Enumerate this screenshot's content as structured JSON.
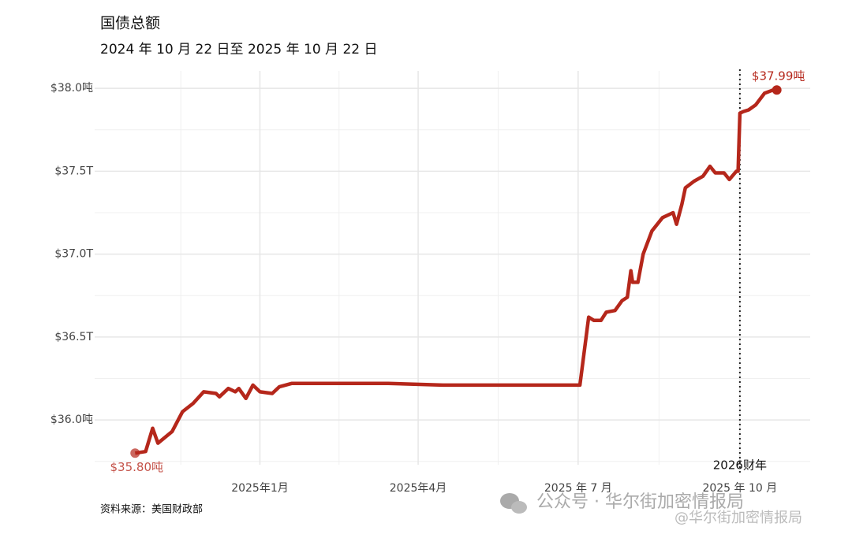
{
  "chart_data": {
    "type": "line",
    "title": "国债总额",
    "subtitle": "2024 年 10 月 22 日至 2025 年 10 月 22 日",
    "source": "资料来源：美国财政部",
    "watermark": [
      "公众号 · 华尔街加密情报局",
      "@华尔街加密情报局"
    ],
    "color": "#b5271b",
    "grid": true,
    "x": [
      "2024-10-22",
      "2024-10-28",
      "2024-11-01",
      "2024-11-04",
      "2024-11-12",
      "2024-11-18",
      "2024-11-24",
      "2024-11-30",
      "2024-12-07",
      "2024-12-09",
      "2024-12-14",
      "2024-12-18",
      "2024-12-20",
      "2024-12-24",
      "2024-12-28",
      "2025-01-01",
      "2025-01-08",
      "2025-01-12",
      "2025-01-19",
      "2025-02-15",
      "2025-03-15",
      "2025-04-15",
      "2025-05-15",
      "2025-06-15",
      "2025-07-02",
      "2025-07-07",
      "2025-07-10",
      "2025-07-14",
      "2025-07-17",
      "2025-07-22",
      "2025-07-26",
      "2025-07-29",
      "2025-07-31",
      "2025-08-01",
      "2025-08-04",
      "2025-08-07",
      "2025-08-12",
      "2025-08-18",
      "2025-08-24",
      "2025-08-26",
      "2025-08-29",
      "2025-08-31",
      "2025-09-05",
      "2025-09-10",
      "2025-09-14",
      "2025-09-17",
      "2025-09-22",
      "2025-09-25",
      "2025-09-29",
      "2025-09-30",
      "2025-10-01",
      "2025-10-03",
      "2025-10-06",
      "2025-10-10",
      "2025-10-15",
      "2025-10-20",
      "2025-10-22"
    ],
    "values": [
      35.8,
      35.81,
      35.95,
      35.86,
      35.93,
      36.05,
      36.1,
      36.17,
      36.16,
      36.14,
      36.19,
      36.17,
      36.19,
      36.13,
      36.21,
      36.17,
      36.16,
      36.2,
      36.22,
      36.22,
      36.22,
      36.21,
      36.21,
      36.21,
      36.21,
      36.62,
      36.6,
      36.6,
      36.65,
      36.66,
      36.72,
      36.74,
      36.9,
      36.83,
      36.83,
      37.0,
      37.14,
      37.22,
      37.25,
      37.18,
      37.3,
      37.4,
      37.44,
      37.47,
      37.53,
      37.49,
      37.49,
      37.45,
      37.5,
      37.5,
      37.85,
      37.86,
      37.87,
      37.9,
      37.97,
      37.99,
      37.99
    ],
    "value_labels": [
      "$35.80吨",
      null,
      null,
      null,
      null,
      null,
      null,
      null,
      null,
      null,
      null,
      null,
      null,
      null,
      null,
      null,
      null,
      null,
      null,
      null,
      null,
      null,
      null,
      null,
      null,
      null,
      null,
      null,
      null,
      null,
      null,
      null,
      null,
      null,
      null,
      null,
      null,
      null,
      null,
      null,
      null,
      null,
      null,
      null,
      null,
      null,
      null,
      null,
      null,
      null,
      null,
      null,
      null,
      null,
      null,
      null,
      "$37.99吨"
    ],
    "xlim": [
      "2024-09-29",
      "2025-11-10"
    ],
    "xticks": [
      {
        "value": "2025-01-01",
        "label": "2025年1月"
      },
      {
        "value": "2025-04-01",
        "label": "2025年4月"
      },
      {
        "value": "2025-07-01",
        "label": "2025 年 7 月"
      },
      {
        "value": "2025-10-01",
        "label": "2025 年 10 月"
      }
    ],
    "ylim": [
      35.73,
      38.105
    ],
    "yticks": [
      {
        "value": 36.0,
        "label": "$36.0吨"
      },
      {
        "value": 36.5,
        "label": "$36.5T"
      },
      {
        "value": 37.0,
        "label": "$37.0T"
      },
      {
        "value": 37.5,
        "label": "$37.5T"
      },
      {
        "value": 38.0,
        "label": "$38.0吨"
      }
    ],
    "annotations": [
      {
        "x": "2025-10-01",
        "label": "2026财年"
      }
    ]
  }
}
